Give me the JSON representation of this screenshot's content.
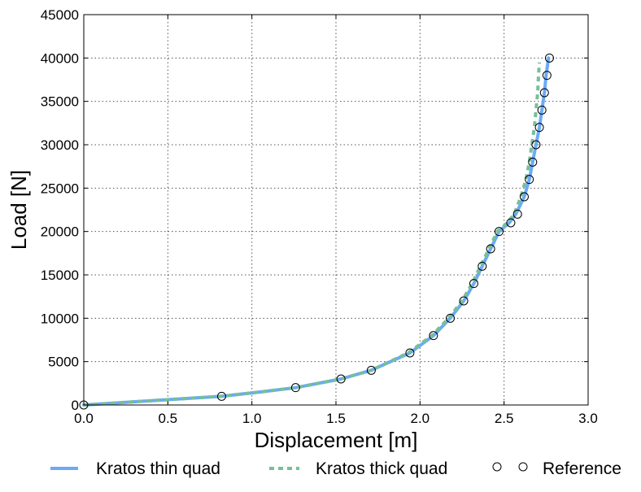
{
  "chart_data": {
    "type": "line",
    "xlabel": "Displacement [m]",
    "ylabel": "Load [N]",
    "xlim": [
      0,
      3.0
    ],
    "ylim": [
      0,
      45000
    ],
    "xticks": [
      "0.0",
      "0.5",
      "1.0",
      "1.5",
      "2.0",
      "2.5",
      "3.0"
    ],
    "yticks": [
      "0",
      "5000",
      "10000",
      "15000",
      "20000",
      "25000",
      "30000",
      "35000",
      "40000",
      "45000"
    ],
    "grid": true,
    "legend_position": "bottom, outside plot",
    "series": [
      {
        "name": "Kratos thin quad",
        "style": "solid line",
        "color": "#6aaaf8",
        "points": [
          [
            0,
            0
          ],
          [
            0.4,
            500
          ],
          [
            0.82,
            1000
          ],
          [
            1.05,
            1500
          ],
          [
            1.26,
            2000
          ],
          [
            1.53,
            3000
          ],
          [
            1.71,
            4000
          ],
          [
            1.94,
            6000
          ],
          [
            2.08,
            8000
          ],
          [
            2.18,
            10000
          ],
          [
            2.26,
            12000
          ],
          [
            2.32,
            14000
          ],
          [
            2.37,
            16000
          ],
          [
            2.42,
            18000
          ],
          [
            2.47,
            20000
          ],
          [
            2.53,
            21000
          ],
          [
            2.57,
            22000
          ],
          [
            2.62,
            24000
          ],
          [
            2.65,
            26000
          ],
          [
            2.67,
            28000
          ],
          [
            2.69,
            30000
          ],
          [
            2.71,
            32000
          ],
          [
            2.725,
            34000
          ],
          [
            2.74,
            36000
          ],
          [
            2.75,
            38000
          ],
          [
            2.765,
            40000
          ]
        ]
      },
      {
        "name": "Kratos thick quad",
        "style": "dashed line",
        "color": "#77bf98",
        "points": [
          [
            0,
            0
          ],
          [
            0.4,
            500
          ],
          [
            0.82,
            1000
          ],
          [
            1.05,
            1500
          ],
          [
            1.26,
            2000
          ],
          [
            1.53,
            3000
          ],
          [
            1.71,
            4000
          ],
          [
            1.93,
            6000
          ],
          [
            2.07,
            8000
          ],
          [
            2.17,
            10000
          ],
          [
            2.25,
            12000
          ],
          [
            2.31,
            14000
          ],
          [
            2.36,
            16000
          ],
          [
            2.41,
            18000
          ],
          [
            2.46,
            20000
          ],
          [
            2.52,
            21000
          ],
          [
            2.56,
            22000
          ],
          [
            2.6,
            24000
          ],
          [
            2.63,
            26000
          ],
          [
            2.65,
            28000
          ],
          [
            2.665,
            30000
          ],
          [
            2.68,
            32000
          ],
          [
            2.69,
            34000
          ],
          [
            2.7,
            36000
          ],
          [
            2.705,
            38000
          ],
          [
            2.71,
            39500
          ]
        ]
      },
      {
        "name": "Reference",
        "style": "markers",
        "color": "#000000",
        "points": [
          [
            0,
            0
          ],
          [
            0.82,
            1000
          ],
          [
            1.26,
            2000
          ],
          [
            1.53,
            3000
          ],
          [
            1.71,
            4000
          ],
          [
            1.94,
            6000
          ],
          [
            2.08,
            8000
          ],
          [
            2.18,
            10000
          ],
          [
            2.26,
            12000
          ],
          [
            2.32,
            14000
          ],
          [
            2.37,
            16000
          ],
          [
            2.42,
            18000
          ],
          [
            2.47,
            20000
          ],
          [
            2.54,
            21000
          ],
          [
            2.58,
            22000
          ],
          [
            2.62,
            24000
          ],
          [
            2.65,
            26000
          ],
          [
            2.67,
            28000
          ],
          [
            2.69,
            30000
          ],
          [
            2.71,
            32000
          ],
          [
            2.725,
            34000
          ],
          [
            2.74,
            36000
          ],
          [
            2.755,
            38000
          ],
          [
            2.77,
            40000
          ]
        ]
      }
    ]
  }
}
